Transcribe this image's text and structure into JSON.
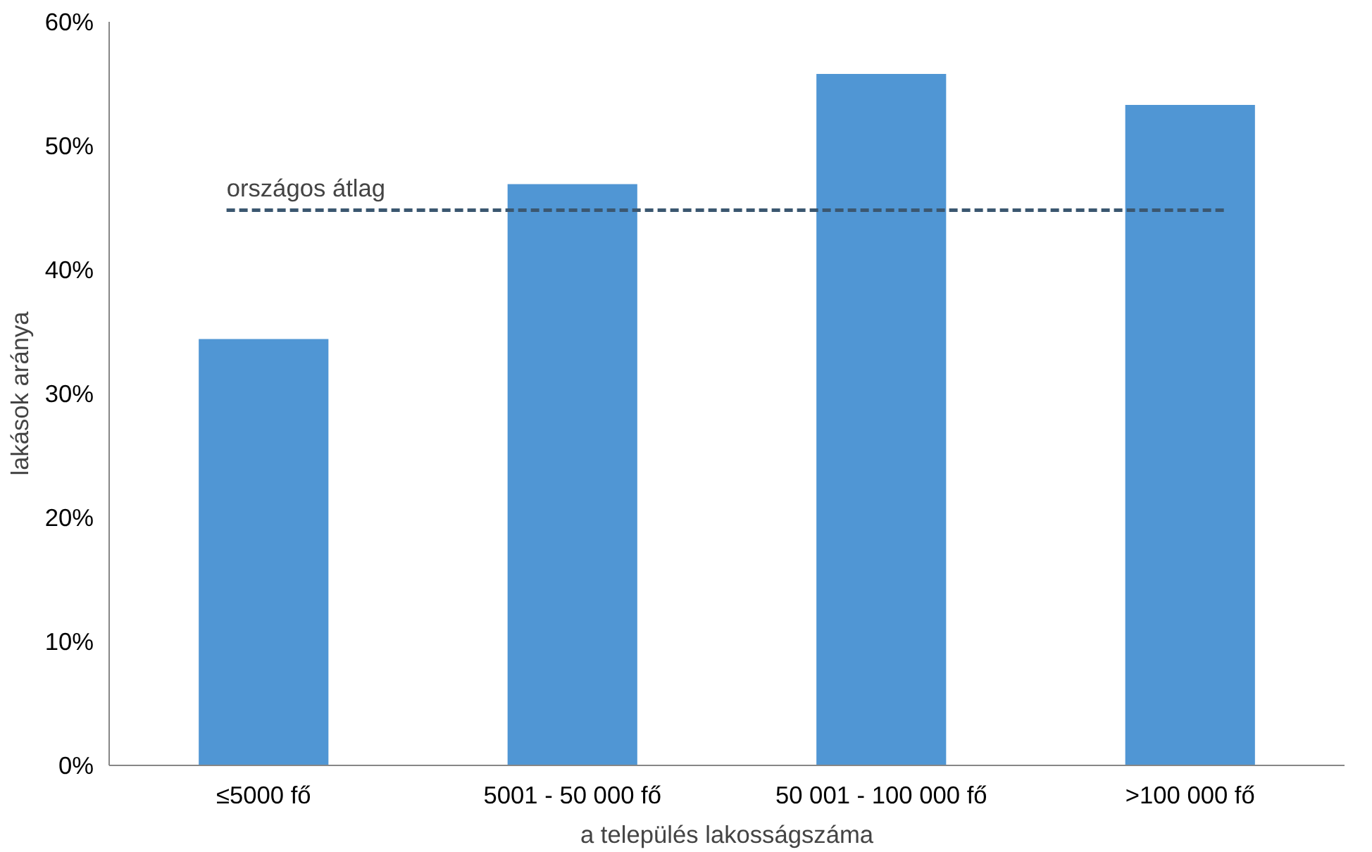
{
  "chart_data": {
    "type": "bar",
    "xlabel": "a település lakosságszáma",
    "ylabel": "lakások aránya",
    "categories": [
      "≤5000 fő",
      "5001 - 50 000 fő",
      "50 001 - 100 000 fő",
      ">100 000 fő"
    ],
    "values": [
      34.4,
      46.9,
      55.8,
      53.3
    ],
    "color": "#5096d4",
    "ylim": [
      0,
      60
    ],
    "yticks": [
      {
        "value": 0,
        "label": "0%"
      },
      {
        "value": 10,
        "label": "10%"
      },
      {
        "value": 20,
        "label": "20%"
      },
      {
        "value": 30,
        "label": "30%"
      },
      {
        "value": 40,
        "label": "40%"
      },
      {
        "value": 50,
        "label": "50%"
      },
      {
        "value": 60,
        "label": "60%"
      }
    ],
    "ref_lines": [
      {
        "axis": "y",
        "value": 44.8,
        "label": "országos átlag",
        "color": "#3b5770",
        "line_style": "dashed"
      }
    ],
    "grid": false
  }
}
